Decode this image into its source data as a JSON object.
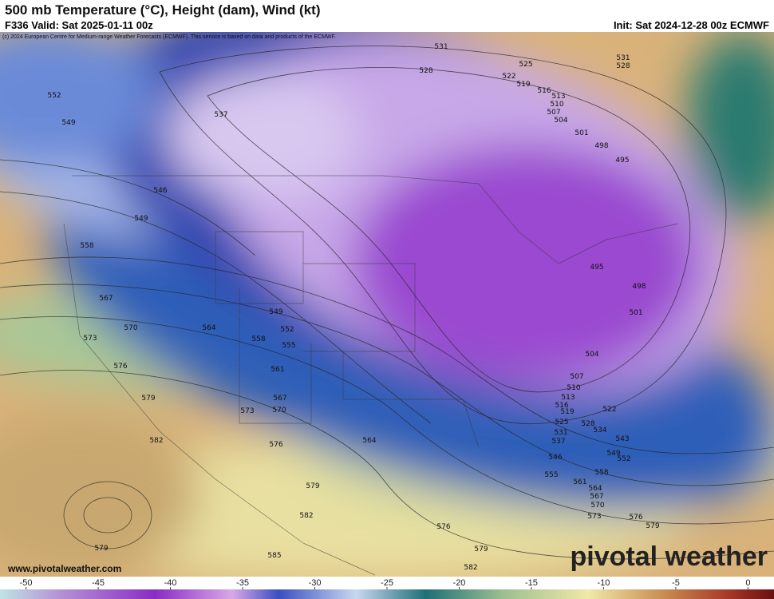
{
  "header": {
    "title": "500 mb Temperature (°C), Height (dam), Wind (kt)",
    "valid": "F336 Valid: Sat 2025-01-11 00z",
    "init": "Init: Sat 2024-12-28 00z ECMWF",
    "credit": "(c) 2024 European Centre for Medium-range Weather Forecasts (ECMWF). This service is based on data and products of the ECMWF."
  },
  "map": {
    "contour_labels": [
      531,
      528,
      525,
      522,
      519,
      516,
      513,
      510,
      507,
      504,
      501,
      498,
      495,
      531,
      528,
      552,
      549,
      537,
      546,
      549,
      558,
      567,
      570,
      573,
      576,
      579,
      582,
      564,
      558,
      549,
      552,
      555,
      561,
      567,
      570,
      573,
      576,
      579,
      582,
      585,
      579,
      564,
      576,
      579,
      582,
      495,
      498,
      501,
      504,
      507,
      510,
      513,
      516,
      519,
      525,
      528,
      522,
      534,
      531,
      537,
      546,
      555,
      561,
      564,
      567,
      570,
      573,
      552,
      549,
      543,
      558,
      576,
      579
    ]
  },
  "colorbar": {
    "range": [
      -51.8,
      1.8
    ],
    "ticks": [
      -50,
      -45,
      -40,
      -35,
      -30,
      -25,
      -20,
      -15,
      -10,
      -5,
      0
    ]
  },
  "footer": {
    "url": "www.pivotalweather.com",
    "logo": "pivotal weather"
  }
}
